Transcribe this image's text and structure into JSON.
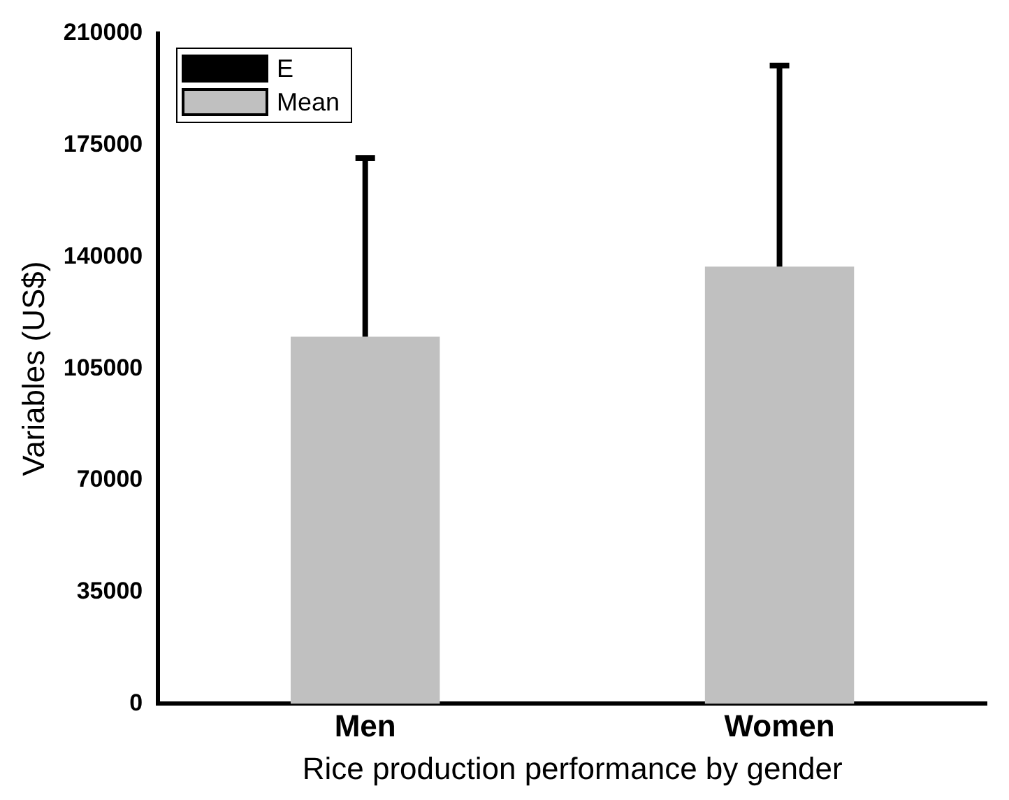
{
  "chart_data": {
    "type": "bar",
    "xlabel": "Rice production performance by gender",
    "ylabel": "Variables (US$)",
    "categories": [
      "Men",
      "Women"
    ],
    "series": [
      {
        "name": "Mean",
        "color": "#c0c0c0",
        "values": [
          115000,
          137000
        ],
        "errors": [
          [
            115000,
            171000
          ],
          [
            137000,
            200000
          ]
        ]
      }
    ],
    "ylim": [
      0,
      210000
    ],
    "yticks": [
      0,
      35000,
      70000,
      105000,
      140000,
      175000,
      210000
    ],
    "grid": false,
    "legend": "top left",
    "annotations": [
      "E"
    ]
  }
}
